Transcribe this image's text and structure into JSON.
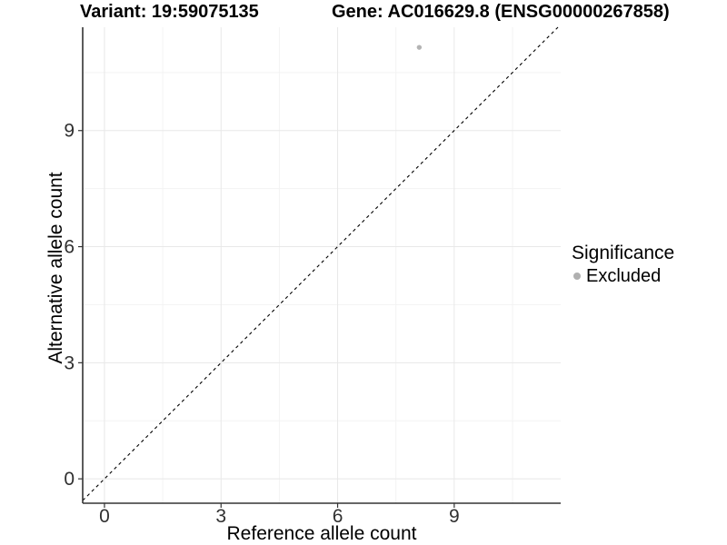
{
  "chart_data": {
    "type": "scatter",
    "title_left": "Variant: 19:59075135",
    "title_right": "Gene: AC016629.8 (ENSG00000267858)",
    "xlabel": "Reference allele count",
    "ylabel": "Alternative allele count",
    "xlim": [
      -0.56,
      11.74
    ],
    "ylim": [
      -0.63,
      11.67
    ],
    "x_ticks": [
      0,
      3,
      6,
      9
    ],
    "y_ticks": [
      0,
      3,
      6,
      9
    ],
    "x_minor_ticks": [
      1.5,
      4.5,
      7.5,
      10.5
    ],
    "y_minor_ticks": [
      1.5,
      4.5,
      7.5,
      10.5
    ],
    "grid": "on",
    "identity_line": {
      "equation": "y = x",
      "style": "dashed",
      "color": "#000000"
    },
    "series": [
      {
        "name": "Excluded",
        "color": "#b3b3b3",
        "points": [
          {
            "x": 8.1,
            "y": 11.15
          }
        ]
      }
    ],
    "legend": {
      "title": "Significance",
      "position": "right",
      "entries": [
        {
          "label": "Excluded",
          "color": "#b0b0b0"
        }
      ]
    },
    "style": {
      "axis_line_color": "#333333",
      "tick_color": "#333333",
      "tick_label_color": "#303030",
      "grid_major_color": "#e8e8e8",
      "grid_minor_color": "#f3f3f3",
      "point_radius": 2.7
    }
  }
}
